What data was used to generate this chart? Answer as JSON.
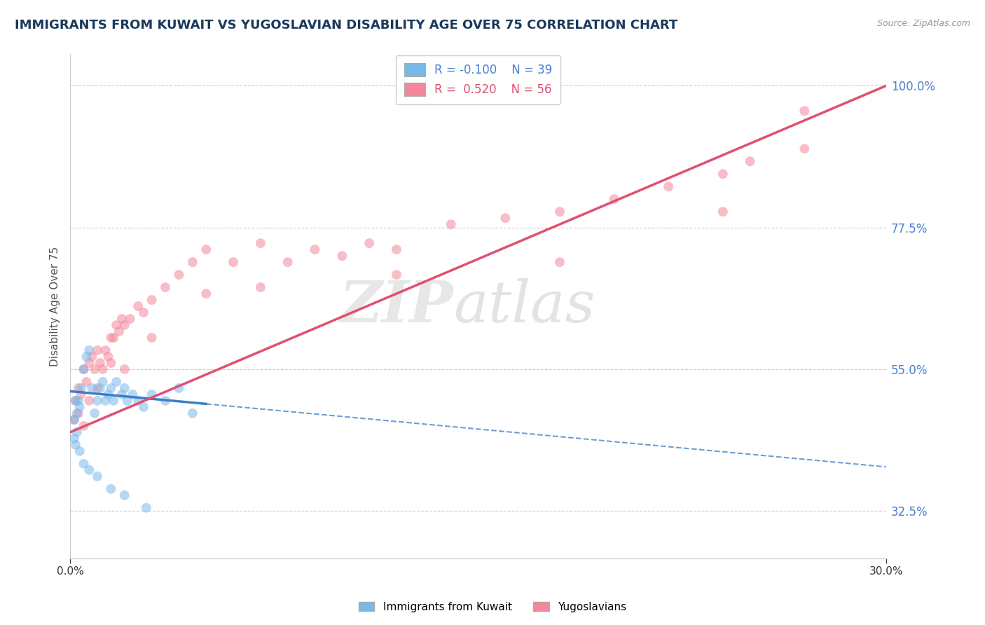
{
  "title": "IMMIGRANTS FROM KUWAIT VS YUGOSLAVIAN DISABILITY AGE OVER 75 CORRELATION CHART",
  "source": "Source: ZipAtlas.com",
  "ylabel": "Disability Age Over 75",
  "legend_entries": [
    {
      "label": "Immigrants from Kuwait",
      "R": -0.1,
      "N": 39,
      "color": "#7ab8e8"
    },
    {
      "label": "Yugoslavians",
      "R": 0.52,
      "N": 56,
      "color": "#f4889a"
    }
  ],
  "kuwait_x": [
    0.15,
    0.2,
    0.25,
    0.3,
    0.35,
    0.4,
    0.5,
    0.6,
    0.7,
    0.8,
    0.9,
    1.0,
    1.1,
    1.2,
    1.3,
    1.4,
    1.5,
    1.6,
    1.7,
    1.9,
    2.0,
    2.1,
    2.3,
    2.5,
    2.7,
    3.0,
    3.5,
    4.0,
    4.5,
    0.15,
    0.2,
    0.25,
    0.35,
    0.5,
    0.7,
    1.0,
    1.5,
    2.0,
    2.8
  ],
  "kuwait_y": [
    47,
    50,
    48,
    50,
    49,
    52,
    55,
    57,
    58,
    52,
    48,
    50,
    52,
    53,
    50,
    51,
    52,
    50,
    53,
    51,
    52,
    50,
    51,
    50,
    49,
    51,
    50,
    52,
    48,
    44,
    43,
    45,
    42,
    40,
    39,
    38,
    36,
    35,
    33
  ],
  "yugo_x": [
    0.15,
    0.2,
    0.3,
    0.4,
    0.5,
    0.6,
    0.7,
    0.8,
    0.9,
    1.0,
    1.1,
    1.2,
    1.3,
    1.4,
    1.5,
    1.6,
    1.7,
    1.8,
    1.9,
    2.0,
    2.2,
    2.5,
    2.7,
    3.0,
    3.5,
    4.0,
    4.5,
    5.0,
    6.0,
    7.0,
    8.0,
    9.0,
    10.0,
    11.0,
    12.0,
    14.0,
    16.0,
    18.0,
    20.0,
    22.0,
    24.0,
    25.0,
    27.0,
    0.3,
    0.5,
    0.7,
    1.0,
    1.5,
    2.0,
    3.0,
    5.0,
    7.0,
    12.0,
    18.0,
    24.0,
    27.0
  ],
  "yugo_y": [
    47,
    50,
    52,
    51,
    55,
    53,
    56,
    57,
    55,
    58,
    56,
    55,
    58,
    57,
    60,
    60,
    62,
    61,
    63,
    62,
    63,
    65,
    64,
    66,
    68,
    70,
    72,
    74,
    72,
    75,
    72,
    74,
    73,
    75,
    74,
    78,
    79,
    80,
    82,
    84,
    86,
    88,
    90,
    48,
    46,
    50,
    52,
    56,
    55,
    60,
    67,
    68,
    70,
    72,
    80,
    96
  ],
  "x_min": 0.0,
  "x_max": 30.0,
  "y_min": 25.0,
  "y_max": 105.0,
  "right_ytick_vals": [
    32.5,
    55.0,
    77.5,
    100.0
  ],
  "right_ytick_labels": [
    "32.5%",
    "55.0%",
    "77.5%",
    "100.0%"
  ],
  "bg_color": "#ffffff",
  "grid_color": "#cccccc",
  "kuwait_color": "#7ab8e8",
  "yugo_color": "#f4889a",
  "kuwait_line_color": "#3d7ec8",
  "yugo_line_color": "#e05070",
  "title_color": "#1a3a5c",
  "title_fontsize": 13,
  "kuwait_solid_end_x": 5.0,
  "yugo_line_start_x": 0.0,
  "yugo_line_end_x": 30.0
}
